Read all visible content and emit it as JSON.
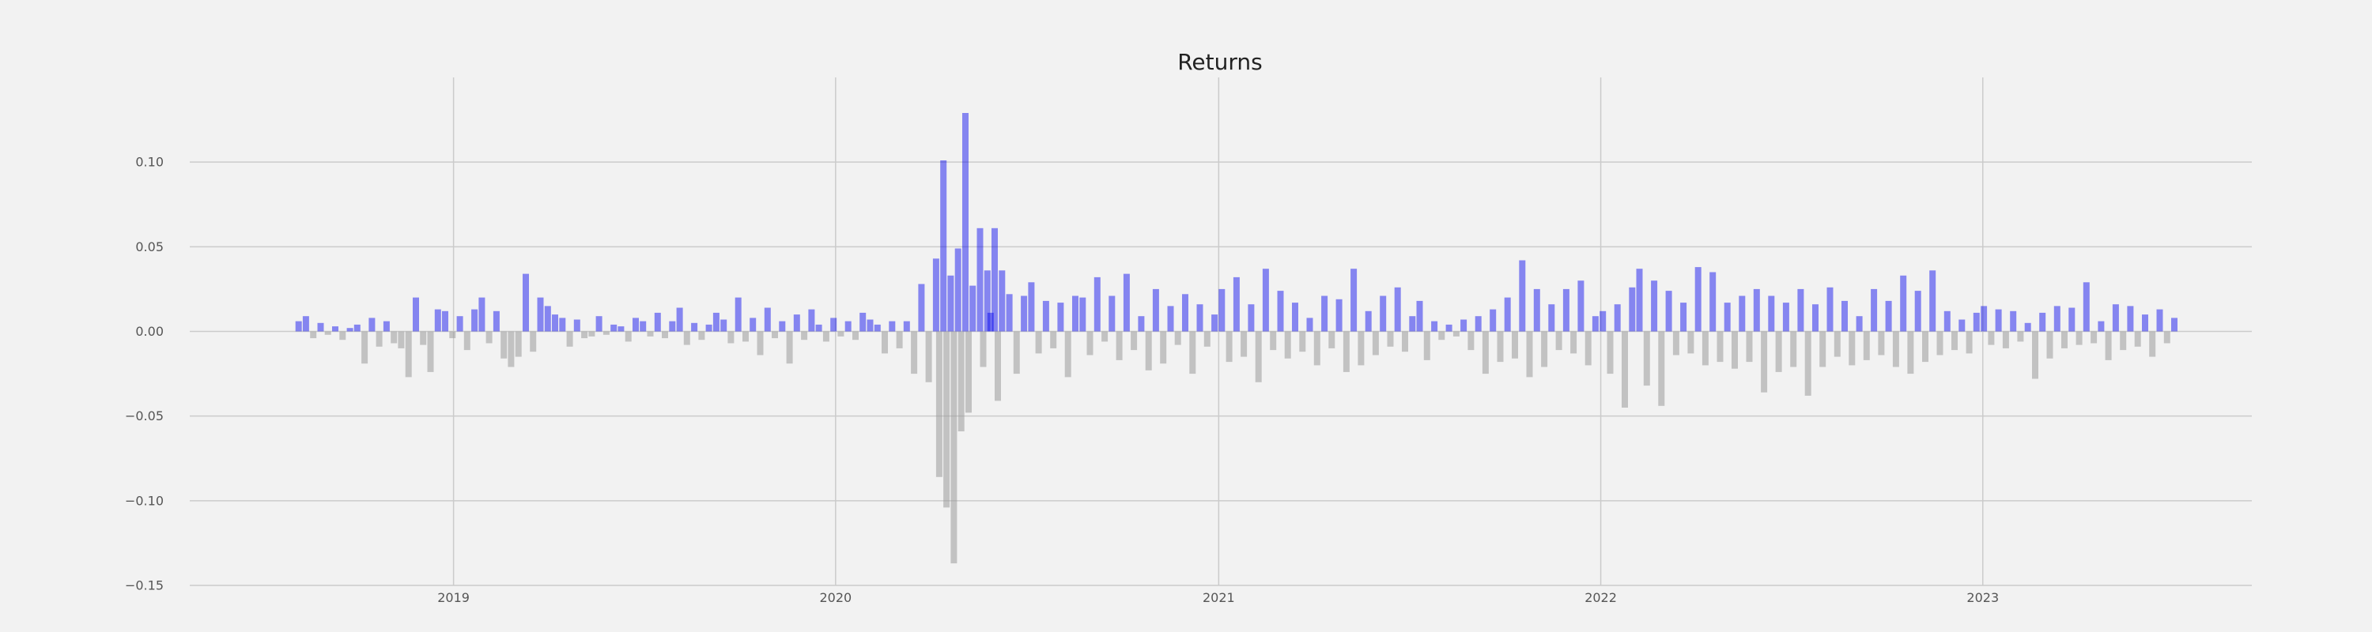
{
  "chart_data": {
    "type": "bar",
    "title": "Returns",
    "xlabel": "",
    "ylabel": "",
    "ylim": [
      -0.15,
      0.15
    ],
    "xlim": [
      "2018-04-24",
      "2023-09-15"
    ],
    "x_ticks": [
      {
        "date": "2019-01-01",
        "label": "2019"
      },
      {
        "date": "2020-01-01",
        "label": "2020"
      },
      {
        "date": "2021-01-01",
        "label": "2021"
      },
      {
        "date": "2022-01-01",
        "label": "2022"
      },
      {
        "date": "2023-01-01",
        "label": "2023"
      }
    ],
    "y_ticks": [
      {
        "value": 0.1,
        "label": "0.10"
      },
      {
        "value": 0.05,
        "label": "0.05"
      },
      {
        "value": 0.0,
        "label": "0.00"
      },
      {
        "value": -0.05,
        "label": "−0.05"
      },
      {
        "value": -0.1,
        "label": "−0.10"
      },
      {
        "value": -0.15,
        "label": "−0.15"
      }
    ],
    "grid": true,
    "series": [
      {
        "color": "#0000ee",
        "opacity": 0.45
      },
      {
        "color": "#9a9a9a",
        "opacity": 0.55
      }
    ],
    "points": [
      [
        "2018-08-06",
        0.006
      ],
      [
        "2018-08-13",
        0.009
      ],
      [
        "2018-08-20",
        -0.004
      ],
      [
        "2018-08-27",
        0.005
      ],
      [
        "2018-09-03",
        -0.002
      ],
      [
        "2018-09-10",
        0.003
      ],
      [
        "2018-09-17",
        -0.005
      ],
      [
        "2018-09-24",
        0.002
      ],
      [
        "2018-10-01",
        0.004
      ],
      [
        "2018-10-08",
        -0.019
      ],
      [
        "2018-10-15",
        0.008
      ],
      [
        "2018-10-22",
        -0.009
      ],
      [
        "2018-10-29",
        0.006
      ],
      [
        "2018-11-05",
        -0.007
      ],
      [
        "2018-11-12",
        -0.01
      ],
      [
        "2018-11-19",
        -0.027
      ],
      [
        "2018-11-26",
        0.02
      ],
      [
        "2018-12-03",
        -0.008
      ],
      [
        "2018-12-10",
        -0.024
      ],
      [
        "2018-12-17",
        0.013
      ],
      [
        "2018-12-24",
        0.012
      ],
      [
        "2018-12-31",
        -0.004
      ],
      [
        "2019-01-07",
        0.009
      ],
      [
        "2019-01-14",
        -0.011
      ],
      [
        "2019-01-21",
        0.013
      ],
      [
        "2019-01-28",
        0.02
      ],
      [
        "2019-02-04",
        -0.007
      ],
      [
        "2019-02-11",
        0.012
      ],
      [
        "2019-02-18",
        -0.016
      ],
      [
        "2019-02-25",
        -0.021
      ],
      [
        "2019-03-04",
        -0.015
      ],
      [
        "2019-03-11",
        0.034
      ],
      [
        "2019-03-18",
        -0.012
      ],
      [
        "2019-03-25",
        0.02
      ],
      [
        "2019-04-01",
        0.015
      ],
      [
        "2019-04-08",
        0.01
      ],
      [
        "2019-04-15",
        0.008
      ],
      [
        "2019-04-22",
        -0.009
      ],
      [
        "2019-04-29",
        0.007
      ],
      [
        "2019-05-06",
        -0.004
      ],
      [
        "2019-05-13",
        -0.003
      ],
      [
        "2019-05-20",
        0.009
      ],
      [
        "2019-05-27",
        -0.002
      ],
      [
        "2019-06-03",
        0.004
      ],
      [
        "2019-06-10",
        0.003
      ],
      [
        "2019-06-17",
        -0.006
      ],
      [
        "2019-06-24",
        0.008
      ],
      [
        "2019-07-01",
        0.006
      ],
      [
        "2019-07-08",
        -0.003
      ],
      [
        "2019-07-15",
        0.011
      ],
      [
        "2019-07-22",
        -0.004
      ],
      [
        "2019-07-29",
        0.006
      ],
      [
        "2019-08-05",
        0.014
      ],
      [
        "2019-08-12",
        -0.008
      ],
      [
        "2019-08-19",
        0.005
      ],
      [
        "2019-08-26",
        -0.005
      ],
      [
        "2019-09-02",
        0.004
      ],
      [
        "2019-09-09",
        0.011
      ],
      [
        "2019-09-16",
        0.007
      ],
      [
        "2019-09-23",
        -0.007
      ],
      [
        "2019-09-30",
        0.02
      ],
      [
        "2019-10-07",
        -0.006
      ],
      [
        "2019-10-14",
        0.008
      ],
      [
        "2019-10-21",
        -0.014
      ],
      [
        "2019-10-28",
        0.014
      ],
      [
        "2019-11-04",
        -0.004
      ],
      [
        "2019-11-11",
        0.006
      ],
      [
        "2019-11-18",
        -0.019
      ],
      [
        "2019-11-25",
        0.01
      ],
      [
        "2019-12-02",
        -0.005
      ],
      [
        "2019-12-09",
        0.013
      ],
      [
        "2019-12-16",
        0.004
      ],
      [
        "2019-12-23",
        -0.006
      ],
      [
        "2019-12-30",
        0.008
      ],
      [
        "2020-01-06",
        -0.003
      ],
      [
        "2020-01-13",
        0.006
      ],
      [
        "2020-01-20",
        -0.005
      ],
      [
        "2020-01-27",
        0.011
      ],
      [
        "2020-02-03",
        0.007
      ],
      [
        "2020-02-10",
        0.004
      ],
      [
        "2020-02-17",
        -0.013
      ],
      [
        "2020-02-24",
        0.006
      ],
      [
        "2020-03-02",
        -0.01
      ],
      [
        "2020-03-09",
        0.006
      ],
      [
        "2020-03-16",
        -0.025
      ],
      [
        "2020-03-23",
        0.028
      ],
      [
        "2020-03-30",
        -0.03
      ],
      [
        "2020-04-06",
        0.043
      ],
      [
        "2020-04-09",
        -0.086
      ],
      [
        "2020-04-13",
        0.101
      ],
      [
        "2020-04-16",
        -0.104
      ],
      [
        "2020-04-20",
        0.033
      ],
      [
        "2020-04-23",
        -0.137
      ],
      [
        "2020-04-27",
        0.049
      ],
      [
        "2020-04-30",
        -0.059
      ],
      [
        "2020-05-04",
        0.129
      ],
      [
        "2020-05-07",
        -0.048
      ],
      [
        "2020-05-11",
        0.027
      ],
      [
        "2020-05-18",
        0.061
      ],
      [
        "2020-05-21",
        -0.021
      ],
      [
        "2020-05-25",
        0.036
      ],
      [
        "2020-05-28",
        0.011
      ],
      [
        "2020-06-01",
        0.061
      ],
      [
        "2020-06-04",
        -0.041
      ],
      [
        "2020-06-08",
        0.036
      ],
      [
        "2020-06-15",
        0.022
      ],
      [
        "2020-06-22",
        -0.025
      ],
      [
        "2020-06-29",
        0.021
      ],
      [
        "2020-07-06",
        0.029
      ],
      [
        "2020-07-13",
        -0.013
      ],
      [
        "2020-07-20",
        0.018
      ],
      [
        "2020-07-27",
        -0.01
      ],
      [
        "2020-08-03",
        0.017
      ],
      [
        "2020-08-10",
        -0.027
      ],
      [
        "2020-08-17",
        0.021
      ],
      [
        "2020-08-24",
        0.02
      ],
      [
        "2020-08-31",
        -0.014
      ],
      [
        "2020-09-07",
        0.032
      ],
      [
        "2020-09-14",
        -0.006
      ],
      [
        "2020-09-21",
        0.021
      ],
      [
        "2020-09-28",
        -0.017
      ],
      [
        "2020-10-05",
        0.034
      ],
      [
        "2020-10-12",
        -0.011
      ],
      [
        "2020-10-19",
        0.009
      ],
      [
        "2020-10-26",
        -0.023
      ],
      [
        "2020-11-02",
        0.025
      ],
      [
        "2020-11-09",
        -0.019
      ],
      [
        "2020-11-16",
        0.015
      ],
      [
        "2020-11-23",
        -0.008
      ],
      [
        "2020-11-30",
        0.022
      ],
      [
        "2020-12-07",
        -0.025
      ],
      [
        "2020-12-14",
        0.016
      ],
      [
        "2020-12-21",
        -0.009
      ],
      [
        "2020-12-28",
        0.01
      ],
      [
        "2021-01-04",
        0.025
      ],
      [
        "2021-01-11",
        -0.018
      ],
      [
        "2021-01-18",
        0.032
      ],
      [
        "2021-01-25",
        -0.015
      ],
      [
        "2021-02-01",
        0.016
      ],
      [
        "2021-02-08",
        -0.03
      ],
      [
        "2021-02-15",
        0.037
      ],
      [
        "2021-02-22",
        -0.011
      ],
      [
        "2021-03-01",
        0.024
      ],
      [
        "2021-03-08",
        -0.016
      ],
      [
        "2021-03-15",
        0.017
      ],
      [
        "2021-03-22",
        -0.012
      ],
      [
        "2021-03-29",
        0.008
      ],
      [
        "2021-04-05",
        -0.02
      ],
      [
        "2021-04-12",
        0.021
      ],
      [
        "2021-04-19",
        -0.01
      ],
      [
        "2021-04-26",
        0.019
      ],
      [
        "2021-05-03",
        -0.024
      ],
      [
        "2021-05-10",
        0.037
      ],
      [
        "2021-05-17",
        -0.02
      ],
      [
        "2021-05-24",
        0.012
      ],
      [
        "2021-05-31",
        -0.014
      ],
      [
        "2021-06-07",
        0.021
      ],
      [
        "2021-06-14",
        -0.009
      ],
      [
        "2021-06-21",
        0.026
      ],
      [
        "2021-06-28",
        -0.012
      ],
      [
        "2021-07-05",
        0.009
      ],
      [
        "2021-07-12",
        0.018
      ],
      [
        "2021-07-19",
        -0.017
      ],
      [
        "2021-07-26",
        0.006
      ],
      [
        "2021-08-02",
        -0.005
      ],
      [
        "2021-08-09",
        0.004
      ],
      [
        "2021-08-16",
        -0.003
      ],
      [
        "2021-08-23",
        0.007
      ],
      [
        "2021-08-30",
        -0.011
      ],
      [
        "2021-09-06",
        0.009
      ],
      [
        "2021-09-13",
        -0.025
      ],
      [
        "2021-09-20",
        0.013
      ],
      [
        "2021-09-27",
        -0.018
      ],
      [
        "2021-10-04",
        0.02
      ],
      [
        "2021-10-11",
        -0.016
      ],
      [
        "2021-10-18",
        0.042
      ],
      [
        "2021-10-25",
        -0.027
      ],
      [
        "2021-11-01",
        0.025
      ],
      [
        "2021-11-08",
        -0.021
      ],
      [
        "2021-11-15",
        0.016
      ],
      [
        "2021-11-22",
        -0.011
      ],
      [
        "2021-11-29",
        0.025
      ],
      [
        "2021-12-06",
        -0.013
      ],
      [
        "2021-12-13",
        0.03
      ],
      [
        "2021-12-20",
        -0.02
      ],
      [
        "2021-12-27",
        0.009
      ],
      [
        "2022-01-03",
        0.012
      ],
      [
        "2022-01-10",
        -0.025
      ],
      [
        "2022-01-17",
        0.016
      ],
      [
        "2022-01-24",
        -0.045
      ],
      [
        "2022-01-31",
        0.026
      ],
      [
        "2022-02-07",
        0.037
      ],
      [
        "2022-02-14",
        -0.032
      ],
      [
        "2022-02-21",
        0.03
      ],
      [
        "2022-02-28",
        -0.044
      ],
      [
        "2022-03-07",
        0.024
      ],
      [
        "2022-03-14",
        -0.014
      ],
      [
        "2022-03-21",
        0.017
      ],
      [
        "2022-03-28",
        -0.013
      ],
      [
        "2022-04-04",
        0.038
      ],
      [
        "2022-04-11",
        -0.02
      ],
      [
        "2022-04-18",
        0.035
      ],
      [
        "2022-04-25",
        -0.018
      ],
      [
        "2022-05-02",
        0.017
      ],
      [
        "2022-05-09",
        -0.022
      ],
      [
        "2022-05-16",
        0.021
      ],
      [
        "2022-05-23",
        -0.018
      ],
      [
        "2022-05-30",
        0.025
      ],
      [
        "2022-06-06",
        -0.036
      ],
      [
        "2022-06-13",
        0.021
      ],
      [
        "2022-06-20",
        -0.024
      ],
      [
        "2022-06-27",
        0.017
      ],
      [
        "2022-07-04",
        -0.021
      ],
      [
        "2022-07-11",
        0.025
      ],
      [
        "2022-07-18",
        -0.038
      ],
      [
        "2022-07-25",
        0.016
      ],
      [
        "2022-08-01",
        -0.021
      ],
      [
        "2022-08-08",
        0.026
      ],
      [
        "2022-08-15",
        -0.015
      ],
      [
        "2022-08-22",
        0.018
      ],
      [
        "2022-08-29",
        -0.02
      ],
      [
        "2022-09-05",
        0.009
      ],
      [
        "2022-09-12",
        -0.017
      ],
      [
        "2022-09-19",
        0.025
      ],
      [
        "2022-09-26",
        -0.014
      ],
      [
        "2022-10-03",
        0.018
      ],
      [
        "2022-10-10",
        -0.021
      ],
      [
        "2022-10-17",
        0.033
      ],
      [
        "2022-10-24",
        -0.025
      ],
      [
        "2022-10-31",
        0.024
      ],
      [
        "2022-11-07",
        -0.018
      ],
      [
        "2022-11-14",
        0.036
      ],
      [
        "2022-11-21",
        -0.014
      ],
      [
        "2022-11-28",
        0.012
      ],
      [
        "2022-12-05",
        -0.011
      ],
      [
        "2022-12-12",
        0.007
      ],
      [
        "2022-12-19",
        -0.013
      ],
      [
        "2022-12-26",
        0.011
      ],
      [
        "2023-01-02",
        0.015
      ],
      [
        "2023-01-09",
        -0.008
      ],
      [
        "2023-01-16",
        0.013
      ],
      [
        "2023-01-23",
        -0.01
      ],
      [
        "2023-01-30",
        0.012
      ],
      [
        "2023-02-06",
        -0.006
      ],
      [
        "2023-02-13",
        0.005
      ],
      [
        "2023-02-20",
        -0.028
      ],
      [
        "2023-02-27",
        0.011
      ],
      [
        "2023-03-06",
        -0.016
      ],
      [
        "2023-03-13",
        0.015
      ],
      [
        "2023-03-20",
        -0.01
      ],
      [
        "2023-03-27",
        0.014
      ],
      [
        "2023-04-03",
        -0.008
      ],
      [
        "2023-04-10",
        0.029
      ],
      [
        "2023-04-17",
        -0.007
      ],
      [
        "2023-04-24",
        0.006
      ],
      [
        "2023-05-01",
        -0.017
      ],
      [
        "2023-05-08",
        0.016
      ],
      [
        "2023-05-15",
        -0.011
      ],
      [
        "2023-05-22",
        0.015
      ],
      [
        "2023-05-29",
        -0.009
      ],
      [
        "2023-06-05",
        0.01
      ],
      [
        "2023-06-12",
        -0.015
      ],
      [
        "2023-06-19",
        0.013
      ],
      [
        "2023-06-26",
        -0.007
      ],
      [
        "2023-07-03",
        0.008
      ]
    ]
  }
}
